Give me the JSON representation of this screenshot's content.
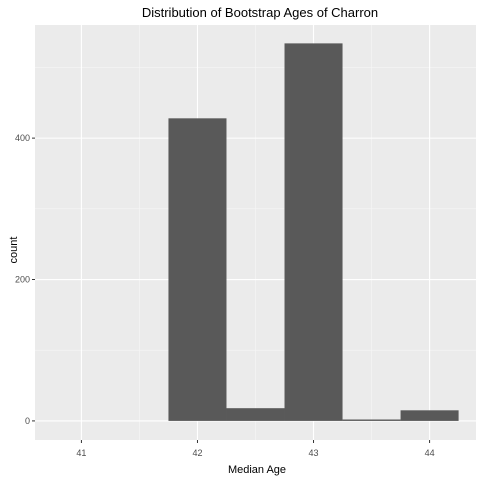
{
  "chart_data": {
    "type": "bar",
    "title": "Distribution of Bootstrap Ages of Charron",
    "xlabel": "Median Age",
    "ylabel": "count",
    "x_ticks": [
      41,
      42,
      43,
      44
    ],
    "y_ticks": [
      0,
      200,
      400
    ],
    "xlim": [
      40.6,
      44.4
    ],
    "ylim": [
      -27,
      560
    ],
    "bin_width": 0.5,
    "bins": [
      {
        "x": 42.0,
        "count": 428
      },
      {
        "x": 42.5,
        "count": 18
      },
      {
        "x": 43.0,
        "count": 534
      },
      {
        "x": 43.5,
        "count": 2
      },
      {
        "x": 44.0,
        "count": 15
      }
    ],
    "grid": true,
    "colors": {
      "panel": "#ebebeb",
      "bar": "#595959",
      "grid_major": "#ffffff"
    }
  }
}
